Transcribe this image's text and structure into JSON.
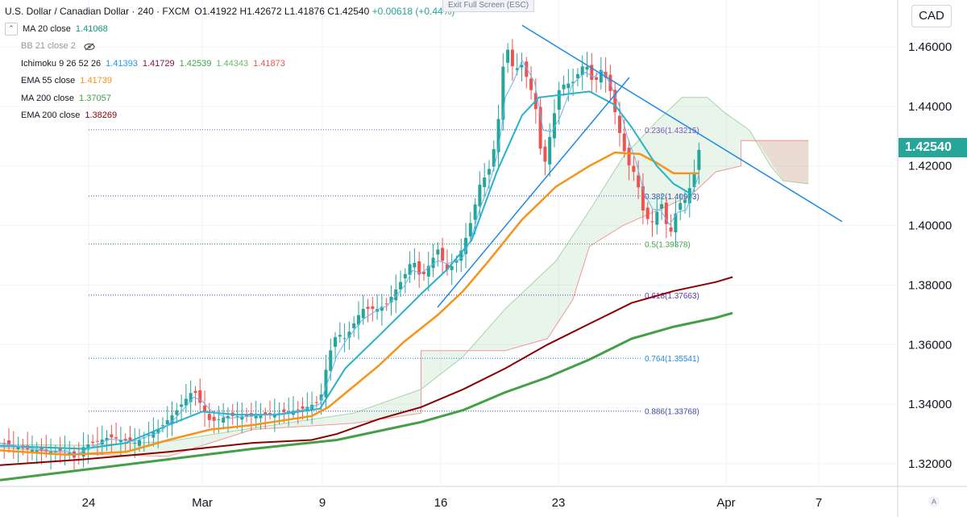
{
  "header": {
    "symbol": "U.S. Dollar / Canadian Dollar · 240 · FXCM",
    "ohlc": "O1.41922  H1.42672  L1.41876  C1.42540",
    "change": "+0.00618 (+0.44%)",
    "fullscreen_hint": "Exit Full Screen (ESC)",
    "currency_button": "CAD",
    "last_price": "1.42540",
    "axis_button": "A"
  },
  "legend": [
    {
      "name": "MA 20 close",
      "values": [
        {
          "v": "1.41068",
          "color": "#089981"
        }
      ],
      "color": "#26b3c9"
    },
    {
      "name": "BB 21 close 2",
      "values": [],
      "color": "#999",
      "eye": true
    },
    {
      "name": "Ichimoku 9 26 52 26",
      "values": [
        {
          "v": "1.41393",
          "color": "#2196f3"
        },
        {
          "v": "1.41729",
          "color": "#880e4f"
        },
        {
          "v": "1.42539",
          "color": "#43a047"
        },
        {
          "v": "1.44343",
          "color": "#66bb6a"
        },
        {
          "v": "1.41873",
          "color": "#ef5350"
        }
      ]
    },
    {
      "name": "EMA 55 close",
      "values": [
        {
          "v": "1.41739",
          "color": "#f7931a"
        }
      ]
    },
    {
      "name": "MA 200 close",
      "values": [
        {
          "v": "1.37057",
          "color": "#43a047"
        }
      ]
    },
    {
      "name": "EMA 200 close",
      "values": [
        {
          "v": "1.38269",
          "color": "#8b0000"
        }
      ]
    }
  ],
  "chart_data": {
    "type": "candlestick",
    "x_ticks": [
      "24",
      "Mar",
      "9",
      "16",
      "23",
      "Apr",
      "7"
    ],
    "y_ticks": [
      "1.46000",
      "1.44000",
      "1.42000",
      "1.40000",
      "1.38000",
      "1.36000",
      "1.34000",
      "1.32000"
    ],
    "ylim": [
      1.315,
      1.4725
    ],
    "colors": {
      "up": "#26a69a",
      "down": "#ef5350",
      "ma20": "#26b3c9",
      "ema55": "#f7931a",
      "ma200": "#43a047",
      "ema200": "#8b0000",
      "tenkan": "#2196f3",
      "kijun": "#880e4f",
      "trend": "#1e88e5"
    },
    "fib_levels": [
      {
        "label": "0.236(1.43215)",
        "value": 1.43215,
        "color": "#7e57c2"
      },
      {
        "label": "0.382(1.40993)",
        "value": 1.40993,
        "color": "#3f51b5"
      },
      {
        "label": "0.5(1.39378)",
        "value": 1.39378,
        "color": "#43a047"
      },
      {
        "label": "0.618(1.37663)",
        "value": 1.37663,
        "color": "#5e35b1"
      },
      {
        "label": "0.764(1.35541)",
        "value": 1.35541,
        "color": "#1e88e5"
      },
      {
        "label": "0.886(1.33768)",
        "value": 1.33768,
        "color": "#3949ab"
      }
    ],
    "tenkan_last": 1.41393,
    "kijun_last": 1.41729,
    "ma20_last": 1.41068,
    "ema55_last": 1.41739,
    "ma200_last": 1.37057,
    "ema200_last": 1.38269,
    "last_close": 1.4254
  }
}
